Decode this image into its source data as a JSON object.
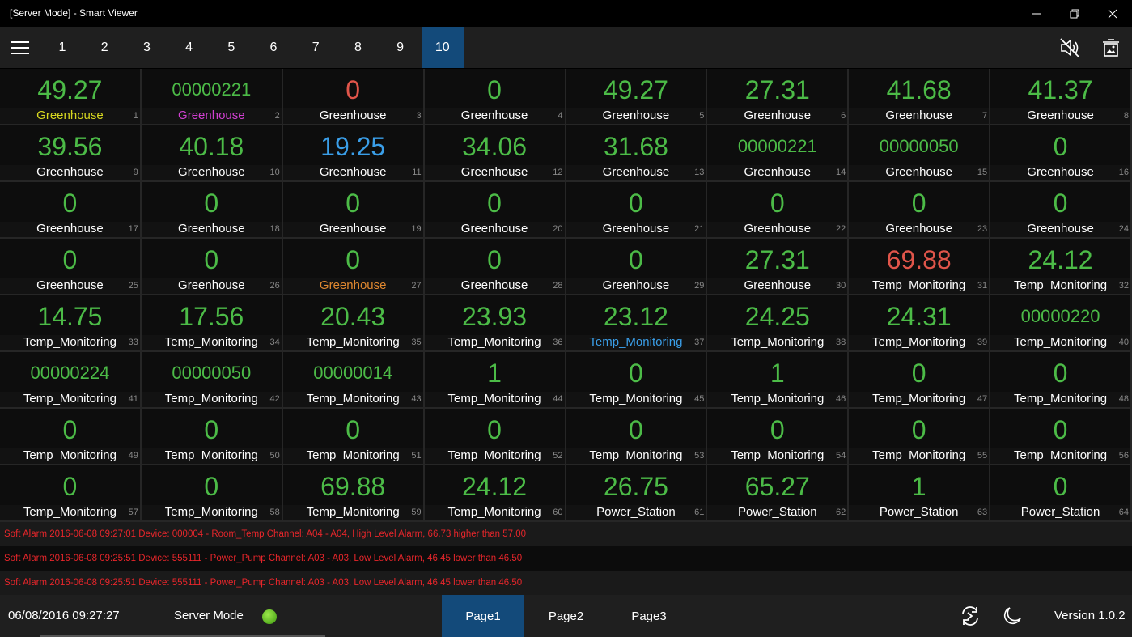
{
  "window": {
    "title": "[Server Mode] - Smart Viewer",
    "minimize_icon": "minimize-icon",
    "restore_icon": "restore-icon",
    "close_icon": "close-icon"
  },
  "nav": {
    "tabs": [
      "1",
      "2",
      "3",
      "4",
      "5",
      "6",
      "7",
      "8",
      "9",
      "10"
    ],
    "active_tab": "10",
    "icons": [
      "menu-icon",
      "mute-icon",
      "clear-alarm-icon"
    ]
  },
  "colors": {
    "green": "#4cbb47",
    "red": "#e0554a",
    "blue": "#3a9ee8",
    "yellow": "#d8d820",
    "magenta": "#d040d0",
    "orange": "#e08830",
    "white": "#ffffff",
    "active": "#134a7a",
    "alarm": "#e8262b"
  },
  "cells": [
    {
      "v": "49.27",
      "l": "Greenhouse",
      "n": "1",
      "lc": "yellow"
    },
    {
      "v": "00000221",
      "l": "Greenhouse",
      "n": "2",
      "lc": "magenta",
      "s": true
    },
    {
      "v": "0",
      "l": "Greenhouse",
      "n": "3",
      "vc": "red"
    },
    {
      "v": "0",
      "l": "Greenhouse",
      "n": "4"
    },
    {
      "v": "49.27",
      "l": "Greenhouse",
      "n": "5"
    },
    {
      "v": "27.31",
      "l": "Greenhouse",
      "n": "6"
    },
    {
      "v": "41.68",
      "l": "Greenhouse",
      "n": "7"
    },
    {
      "v": "41.37",
      "l": "Greenhouse",
      "n": "8"
    },
    {
      "v": "39.56",
      "l": "Greenhouse",
      "n": "9"
    },
    {
      "v": "40.18",
      "l": "Greenhouse",
      "n": "10"
    },
    {
      "v": "19.25",
      "l": "Greenhouse",
      "n": "11",
      "vc": "blue"
    },
    {
      "v": "34.06",
      "l": "Greenhouse",
      "n": "12"
    },
    {
      "v": "31.68",
      "l": "Greenhouse",
      "n": "13"
    },
    {
      "v": "00000221",
      "l": "Greenhouse",
      "n": "14",
      "s": true
    },
    {
      "v": "00000050",
      "l": "Greenhouse",
      "n": "15",
      "s": true
    },
    {
      "v": "0",
      "l": "Greenhouse",
      "n": "16"
    },
    {
      "v": "0",
      "l": "Greenhouse",
      "n": "17"
    },
    {
      "v": "0",
      "l": "Greenhouse",
      "n": "18"
    },
    {
      "v": "0",
      "l": "Greenhouse",
      "n": "19"
    },
    {
      "v": "0",
      "l": "Greenhouse",
      "n": "20"
    },
    {
      "v": "0",
      "l": "Greenhouse",
      "n": "21"
    },
    {
      "v": "0",
      "l": "Greenhouse",
      "n": "22"
    },
    {
      "v": "0",
      "l": "Greenhouse",
      "n": "23"
    },
    {
      "v": "0",
      "l": "Greenhouse",
      "n": "24"
    },
    {
      "v": "0",
      "l": "Greenhouse",
      "n": "25"
    },
    {
      "v": "0",
      "l": "Greenhouse",
      "n": "26"
    },
    {
      "v": "0",
      "l": "Greenhouse",
      "n": "27",
      "lc": "orange"
    },
    {
      "v": "0",
      "l": "Greenhouse",
      "n": "28"
    },
    {
      "v": "0",
      "l": "Greenhouse",
      "n": "29"
    },
    {
      "v": "27.31",
      "l": "Greenhouse",
      "n": "30"
    },
    {
      "v": "69.88",
      "l": "Temp_Monitoring",
      "n": "31",
      "vc": "red"
    },
    {
      "v": "24.12",
      "l": "Temp_Monitoring",
      "n": "32"
    },
    {
      "v": "14.75",
      "l": "Temp_Monitoring",
      "n": "33"
    },
    {
      "v": "17.56",
      "l": "Temp_Monitoring",
      "n": "34"
    },
    {
      "v": "20.43",
      "l": "Temp_Monitoring",
      "n": "35"
    },
    {
      "v": "23.93",
      "l": "Temp_Monitoring",
      "n": "36"
    },
    {
      "v": "23.12",
      "l": "Temp_Monitoring",
      "n": "37",
      "lc": "blue"
    },
    {
      "v": "24.25",
      "l": "Temp_Monitoring",
      "n": "38"
    },
    {
      "v": "24.31",
      "l": "Temp_Monitoring",
      "n": "39"
    },
    {
      "v": "00000220",
      "l": "Temp_Monitoring",
      "n": "40",
      "s": true
    },
    {
      "v": "00000224",
      "l": "Temp_Monitoring",
      "n": "41",
      "s": true
    },
    {
      "v": "00000050",
      "l": "Temp_Monitoring",
      "n": "42",
      "s": true
    },
    {
      "v": "00000014",
      "l": "Temp_Monitoring",
      "n": "43",
      "s": true
    },
    {
      "v": "1",
      "l": "Temp_Monitoring",
      "n": "44"
    },
    {
      "v": "0",
      "l": "Temp_Monitoring",
      "n": "45"
    },
    {
      "v": "1",
      "l": "Temp_Monitoring",
      "n": "46"
    },
    {
      "v": "0",
      "l": "Temp_Monitoring",
      "n": "47"
    },
    {
      "v": "0",
      "l": "Temp_Monitoring",
      "n": "48"
    },
    {
      "v": "0",
      "l": "Temp_Monitoring",
      "n": "49"
    },
    {
      "v": "0",
      "l": "Temp_Monitoring",
      "n": "50"
    },
    {
      "v": "0",
      "l": "Temp_Monitoring",
      "n": "51"
    },
    {
      "v": "0",
      "l": "Temp_Monitoring",
      "n": "52"
    },
    {
      "v": "0",
      "l": "Temp_Monitoring",
      "n": "53"
    },
    {
      "v": "0",
      "l": "Temp_Monitoring",
      "n": "54"
    },
    {
      "v": "0",
      "l": "Temp_Monitoring",
      "n": "55"
    },
    {
      "v": "0",
      "l": "Temp_Monitoring",
      "n": "56"
    },
    {
      "v": "0",
      "l": "Temp_Monitoring",
      "n": "57"
    },
    {
      "v": "0",
      "l": "Temp_Monitoring",
      "n": "58"
    },
    {
      "v": "69.88",
      "l": "Temp_Monitoring",
      "n": "59"
    },
    {
      "v": "24.12",
      "l": "Temp_Monitoring",
      "n": "60"
    },
    {
      "v": "26.75",
      "l": "Power_Station",
      "n": "61"
    },
    {
      "v": "65.27",
      "l": "Power_Station",
      "n": "62"
    },
    {
      "v": "1",
      "l": "Power_Station",
      "n": "63"
    },
    {
      "v": "0",
      "l": "Power_Station",
      "n": "64"
    }
  ],
  "alarms": [
    "Soft Alarm 2016-06-08 09:27:01 Device: 000004 - Room_Temp Channel: A04 - A04, High Level Alarm, 66.73 higher than 57.00",
    "Soft Alarm 2016-06-08 09:25:51 Device: 555111 - Power_Pump Channel: A03 - A03, Low Level Alarm, 46.45 lower than 46.50",
    "Soft Alarm 2016-06-08 09:25:51 Device: 555111 - Power_Pump Channel: A03 - A03, Low Level Alarm, 46.45 lower than 46.50"
  ],
  "footer": {
    "datetime": "06/08/2016 09:27:27",
    "mode": "Server Mode",
    "pages": [
      "Page1",
      "Page2",
      "Page3"
    ],
    "active_page": "Page1",
    "version": "Version 1.0.2"
  }
}
